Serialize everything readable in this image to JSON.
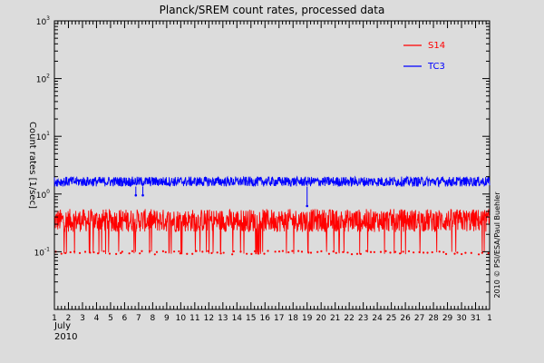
{
  "chart_data": {
    "type": "line",
    "title": "Planck/SREM count rates, processed data",
    "ylabel": "Count rates [1/sec]",
    "x_sub_label_month": "July",
    "x_sub_label_year": "2010",
    "xlim": [
      1,
      32
    ],
    "x_tick_labels": [
      "1",
      "2",
      "3",
      "4",
      "5",
      "6",
      "7",
      "8",
      "9",
      "10",
      "11",
      "12",
      "13",
      "14",
      "15",
      "16",
      "17",
      "18",
      "19",
      "20",
      "21",
      "22",
      "23",
      "24",
      "25",
      "26",
      "27",
      "28",
      "29",
      "30",
      "31",
      "1"
    ],
    "y_scale": "log",
    "ylim": [
      0.01,
      1000
    ],
    "y_tick_labels": [
      {
        "base": "10",
        "exp": "3"
      },
      {
        "base": "10",
        "exp": "2"
      },
      {
        "base": "10",
        "exp": "1"
      },
      {
        "base": "10",
        "exp": "0"
      },
      {
        "base": "10",
        "exp": "-1"
      }
    ],
    "grid": false,
    "legend_position": "top-right",
    "series": [
      {
        "name": "S14",
        "color": "#ff0000",
        "typical_range": [
          0.22,
          0.55
        ],
        "dip_min": 0.09
      },
      {
        "name": "TC3",
        "color": "#0000ff",
        "typical_range": [
          1.35,
          2.0
        ],
        "dips": [
          {
            "day": 6.8,
            "value": 0.95
          },
          {
            "day": 7.3,
            "value": 0.95
          },
          {
            "day": 19.0,
            "value": 0.62
          }
        ]
      }
    ],
    "credit": "2010 © PSI/ESA/Paul Buehler"
  }
}
